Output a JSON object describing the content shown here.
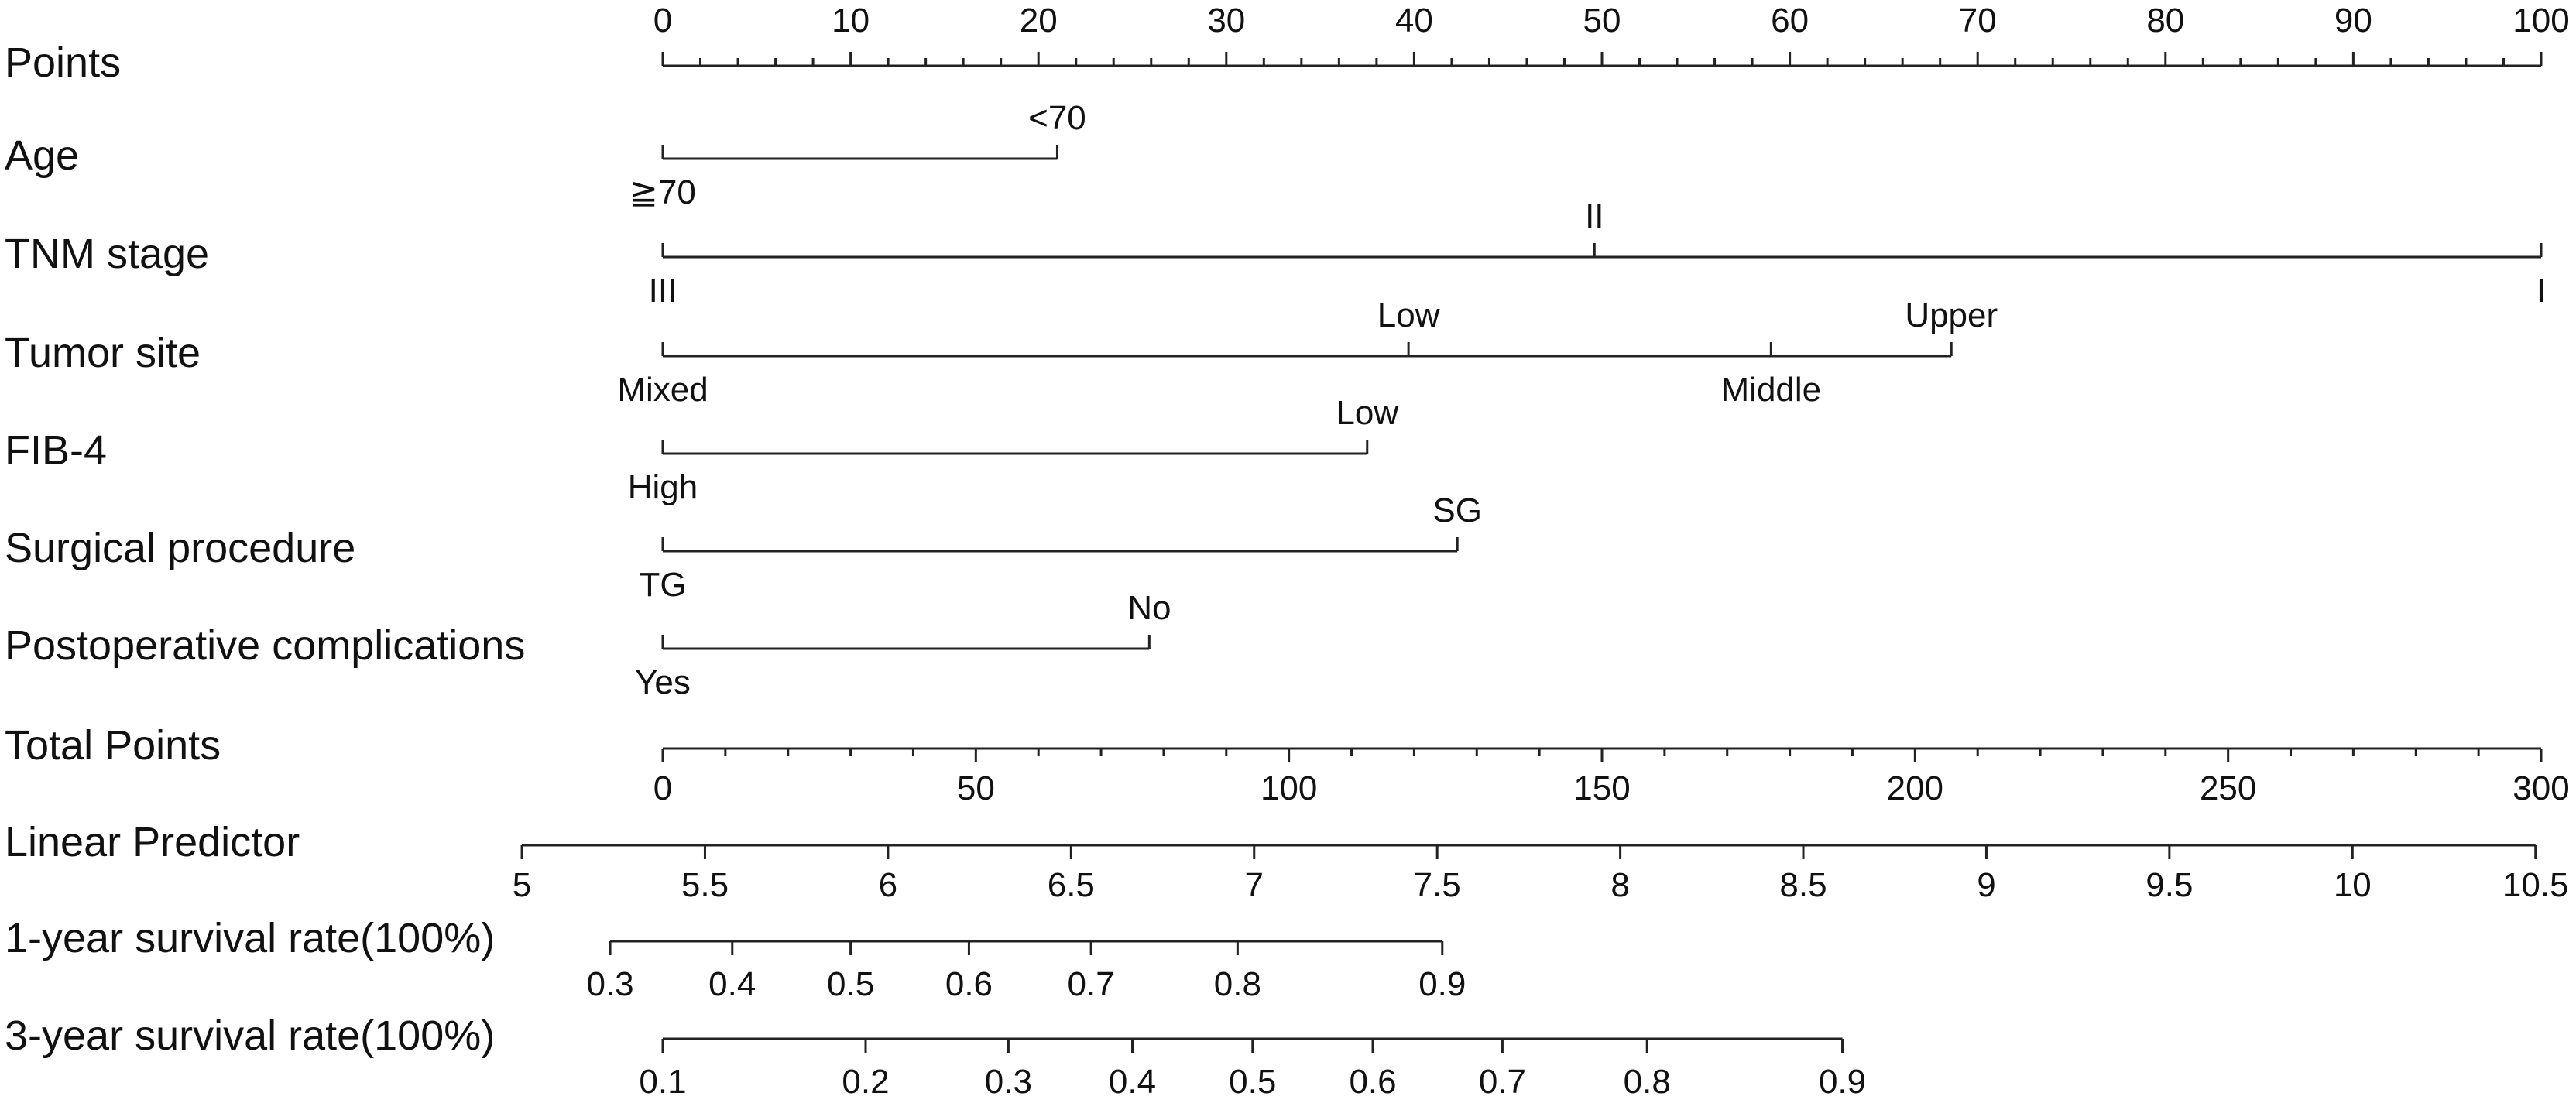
{
  "chart_data": {
    "type": "nomogram",
    "rows": [
      {
        "id": "points",
        "label": "Points",
        "kind": "axis",
        "range": [
          0,
          100
        ],
        "major_ticks": [
          0,
          10,
          20,
          30,
          40,
          50,
          60,
          70,
          80,
          90,
          100
        ],
        "minor_step": 2,
        "tick_labels_position": "above"
      },
      {
        "id": "age",
        "label": "Age",
        "kind": "factor",
        "levels": [
          {
            "label": "<70",
            "points": 21,
            "label_position": "above"
          },
          {
            "label": "≧70",
            "points": 0,
            "label_position": "below"
          }
        ]
      },
      {
        "id": "tnm_stage",
        "label": "TNM stage",
        "kind": "factor",
        "levels": [
          {
            "label": "II",
            "points": 49.6,
            "label_position": "above"
          },
          {
            "label": "III",
            "points": 0,
            "label_position": "below"
          },
          {
            "label": "I",
            "points": 100,
            "label_position": "below"
          }
        ]
      },
      {
        "id": "tumor_site",
        "label": "Tumor site",
        "kind": "factor",
        "levels": [
          {
            "label": "Low",
            "points": 39.7,
            "label_position": "above"
          },
          {
            "label": "Upper",
            "points": 68.6,
            "label_position": "above"
          },
          {
            "label": "Mixed",
            "points": 0,
            "label_position": "below"
          },
          {
            "label": "Middle",
            "points": 59,
            "label_position": "below"
          }
        ]
      },
      {
        "id": "fib4",
        "label": "FIB-4",
        "kind": "factor",
        "levels": [
          {
            "label": "Low",
            "points": 37.5,
            "label_position": "above"
          },
          {
            "label": "High",
            "points": 0,
            "label_position": "below"
          }
        ]
      },
      {
        "id": "surgical_procedure",
        "label": "Surgical procedure",
        "kind": "factor",
        "levels": [
          {
            "label": "SG",
            "points": 42.3,
            "label_position": "above"
          },
          {
            "label": "TG",
            "points": 0,
            "label_position": "below"
          }
        ]
      },
      {
        "id": "postop_complications",
        "label": "Postoperative complications",
        "kind": "factor",
        "levels": [
          {
            "label": "No",
            "points": 25.9,
            "label_position": "above"
          },
          {
            "label": "Yes",
            "points": 0,
            "label_position": "below"
          }
        ]
      },
      {
        "id": "total_points",
        "label": "Total Points",
        "kind": "axis",
        "range": [
          0,
          300
        ],
        "points_range": [
          0,
          100
        ],
        "major_ticks": [
          0,
          50,
          100,
          150,
          200,
          250,
          300
        ],
        "minor_step": 10,
        "tick_labels_position": "below"
      },
      {
        "id": "linear_predictor",
        "label": "Linear Predictor",
        "kind": "axis",
        "range": [
          5,
          10.5
        ],
        "points_range": [
          -7.5,
          99.7
        ],
        "major_ticks": [
          5,
          5.5,
          6,
          6.5,
          7,
          7.5,
          8,
          8.5,
          9,
          9.5,
          10,
          10.5
        ],
        "tick_label_texts": [
          "5",
          "5.5",
          "6",
          "6.5",
          "7",
          "7.5",
          "8",
          "8.5",
          "9",
          "9.5",
          "10",
          "10.5"
        ],
        "minor_step": null,
        "tick_labels_position": "below"
      },
      {
        "id": "survival_1yr",
        "label": "1-year survival rate(100%)",
        "kind": "scale",
        "ticks": [
          {
            "label": "0.3",
            "points": -2.8
          },
          {
            "label": "0.4",
            "points": 3.7
          },
          {
            "label": "0.5",
            "points": 10.0
          },
          {
            "label": "0.6",
            "points": 16.3
          },
          {
            "label": "0.7",
            "points": 22.8
          },
          {
            "label": "0.8",
            "points": 30.6
          },
          {
            "label": "0.9",
            "points": 41.5
          }
        ],
        "tick_labels_position": "below"
      },
      {
        "id": "survival_3yr",
        "label": "3-year survival rate(100%)",
        "kind": "scale",
        "ticks": [
          {
            "label": "0.1",
            "points": 0
          },
          {
            "label": "0.2",
            "points": 10.8
          },
          {
            "label": "0.3",
            "points": 18.4
          },
          {
            "label": "0.4",
            "points": 25.0
          },
          {
            "label": "0.5",
            "points": 31.4
          },
          {
            "label": "0.6",
            "points": 37.8
          },
          {
            "label": "0.7",
            "points": 44.7
          },
          {
            "label": "0.8",
            "points": 52.4
          },
          {
            "label": "0.9",
            "points": 62.8
          }
        ],
        "tick_labels_position": "below"
      }
    ]
  }
}
